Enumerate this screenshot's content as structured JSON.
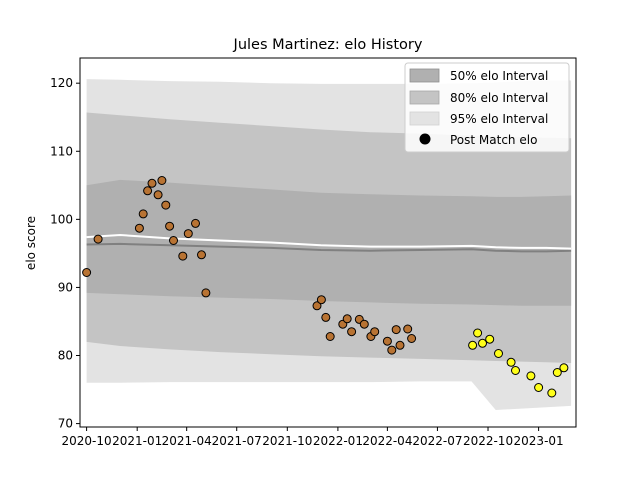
{
  "chart_data": {
    "type": "scatter",
    "title": "Jules Martinez: elo History",
    "xlabel": "",
    "ylabel": "elo score",
    "xlim": [
      "2020-09-19",
      "2023-03-10"
    ],
    "ylim": [
      69.5,
      123.7
    ],
    "x_ticks": [
      "2020-10",
      "2021-01",
      "2021-04",
      "2021-07",
      "2021-10",
      "2022-01",
      "2022-04",
      "2022-07",
      "2022-10",
      "2023-01"
    ],
    "y_ticks": [
      70,
      80,
      90,
      100,
      110,
      120
    ],
    "grid": false,
    "legend_position": "top-right",
    "legend": [
      {
        "label": "50% elo Interval",
        "kind": "band",
        "color": "#b0b0b0"
      },
      {
        "label": "80% elo Interval",
        "kind": "band",
        "color": "#c4c4c4"
      },
      {
        "label": "95% elo Interval",
        "kind": "band",
        "color": "#e3e3e3"
      },
      {
        "label": "Post Match elo",
        "kind": "marker",
        "color": "#000000"
      }
    ],
    "bands": {
      "x": [
        "2020-10-01",
        "2020-12-01",
        "2021-03-01",
        "2021-06-01",
        "2021-09-01",
        "2021-12-01",
        "2022-03-01",
        "2022-06-01",
        "2022-09-01",
        "2022-10-15",
        "2022-12-01",
        "2023-01-15",
        "2023-03-01"
      ],
      "p95_upper": [
        120.6,
        120.5,
        120.3,
        120.2,
        120.0,
        119.9,
        119.9,
        119.9,
        120.0,
        120.1,
        120.3,
        120.4,
        120.4
      ],
      "p80_upper": [
        115.7,
        115.3,
        114.7,
        114.2,
        113.7,
        113.2,
        112.8,
        112.6,
        112.3,
        112.2,
        112.1,
        112.0,
        111.9
      ],
      "p50_upper": [
        105.0,
        105.8,
        105.4,
        104.9,
        104.4,
        103.9,
        103.7,
        103.5,
        103.4,
        103.3,
        103.3,
        103.4,
        103.5
      ],
      "median": [
        96.3,
        96.4,
        96.2,
        96.0,
        95.8,
        95.5,
        95.4,
        95.5,
        95.6,
        95.4,
        95.3,
        95.3,
        95.4
      ],
      "mean": [
        97.4,
        97.7,
        97.2,
        96.9,
        96.6,
        96.2,
        96.0,
        96.0,
        96.1,
        95.9,
        95.8,
        95.8,
        95.7
      ],
      "p50_lower": [
        89.2,
        89.0,
        88.7,
        88.5,
        88.3,
        88.0,
        87.8,
        87.6,
        87.5,
        87.4,
        87.3,
        87.3,
        87.3
      ],
      "p80_lower": [
        82.0,
        81.4,
        80.9,
        80.5,
        80.2,
        79.9,
        79.7,
        79.5,
        79.3,
        79.2,
        79.1,
        79.0,
        78.9
      ],
      "p95_lower": [
        76.0,
        76.0,
        76.1,
        76.1,
        76.1,
        76.1,
        76.1,
        76.2,
        76.2,
        72.0,
        72.2,
        72.4,
        72.6
      ]
    },
    "series": [
      {
        "color": "#b87333",
        "points": [
          [
            "2020-10-01",
            92.2
          ],
          [
            "2020-10-22",
            97.1
          ],
          [
            "2021-01-05",
            98.7
          ],
          [
            "2021-01-12",
            100.8
          ],
          [
            "2021-01-20",
            104.2
          ],
          [
            "2021-01-28",
            105.3
          ],
          [
            "2021-02-08",
            103.6
          ],
          [
            "2021-02-15",
            105.7
          ],
          [
            "2021-02-22",
            102.1
          ],
          [
            "2021-03-01",
            99.0
          ],
          [
            "2021-03-08",
            96.9
          ],
          [
            "2021-03-25",
            94.6
          ],
          [
            "2021-04-04",
            97.9
          ],
          [
            "2021-04-17",
            99.4
          ],
          [
            "2021-04-28",
            94.8
          ],
          [
            "2021-05-06",
            89.2
          ],
          [
            "2021-11-24",
            87.3
          ],
          [
            "2021-12-02",
            88.2
          ],
          [
            "2021-12-10",
            85.6
          ],
          [
            "2021-12-18",
            82.8
          ],
          [
            "2022-01-10",
            84.6
          ],
          [
            "2022-01-18",
            85.4
          ],
          [
            "2022-01-26",
            83.5
          ],
          [
            "2022-02-09",
            85.3
          ],
          [
            "2022-02-18",
            84.6
          ],
          [
            "2022-03-02",
            82.8
          ],
          [
            "2022-03-09",
            83.5
          ],
          [
            "2022-04-01",
            82.1
          ],
          [
            "2022-04-09",
            80.8
          ],
          [
            "2022-04-17",
            83.8
          ],
          [
            "2022-04-24",
            81.5
          ],
          [
            "2022-05-08",
            83.9
          ],
          [
            "2022-05-15",
            82.5
          ]
        ]
      },
      {
        "color": "#ffff1a",
        "points": [
          [
            "2022-09-03",
            81.5
          ],
          [
            "2022-09-12",
            83.3
          ],
          [
            "2022-09-21",
            81.8
          ],
          [
            "2022-10-04",
            82.4
          ],
          [
            "2022-10-20",
            80.3
          ],
          [
            "2022-11-12",
            79.0
          ],
          [
            "2022-11-20",
            77.8
          ],
          [
            "2022-12-18",
            77.0
          ],
          [
            "2023-01-01",
            75.3
          ],
          [
            "2023-01-25",
            74.5
          ],
          [
            "2023-02-04",
            77.5
          ],
          [
            "2023-02-16",
            78.2
          ]
        ]
      }
    ]
  }
}
